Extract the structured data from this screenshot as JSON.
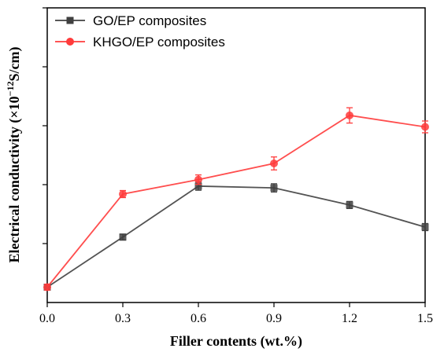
{
  "chart_data": {
    "type": "line",
    "xlabel": "Filler contents (wt.%)",
    "ylabel": "Electrical conductivity (×10",
    "ylabel_exp": "−12",
    "ylabel_unit": "S/cm)",
    "x": [
      0.0,
      0.3,
      0.6,
      0.9,
      1.2,
      1.5
    ],
    "x_tick_labels": [
      "0.0",
      "0.3",
      "0.6",
      "0.9",
      "1.2",
      "1.5"
    ],
    "xlim": [
      0.0,
      1.5
    ],
    "ylim": [
      0,
      1
    ],
    "y_ticks": [
      0.2,
      0.4,
      0.6,
      0.8,
      1.0
    ],
    "y_tick_labels_shown": false,
    "grid": false,
    "legend_position": "top-left",
    "series": [
      {
        "name": "GO/EP composites",
        "color": "#404040",
        "marker": "square",
        "values": [
          0.052,
          0.222,
          0.395,
          0.389,
          0.331,
          0.256
        ],
        "errors": [
          0.01,
          0.01,
          0.014,
          0.014,
          0.012,
          0.012
        ]
      },
      {
        "name": "KHGO/EP composites",
        "color": "#ff3b3b",
        "marker": "circle",
        "values": [
          0.052,
          0.368,
          0.417,
          0.472,
          0.635,
          0.596
        ],
        "errors": [
          0.01,
          0.012,
          0.016,
          0.022,
          0.026,
          0.02
        ]
      }
    ]
  }
}
